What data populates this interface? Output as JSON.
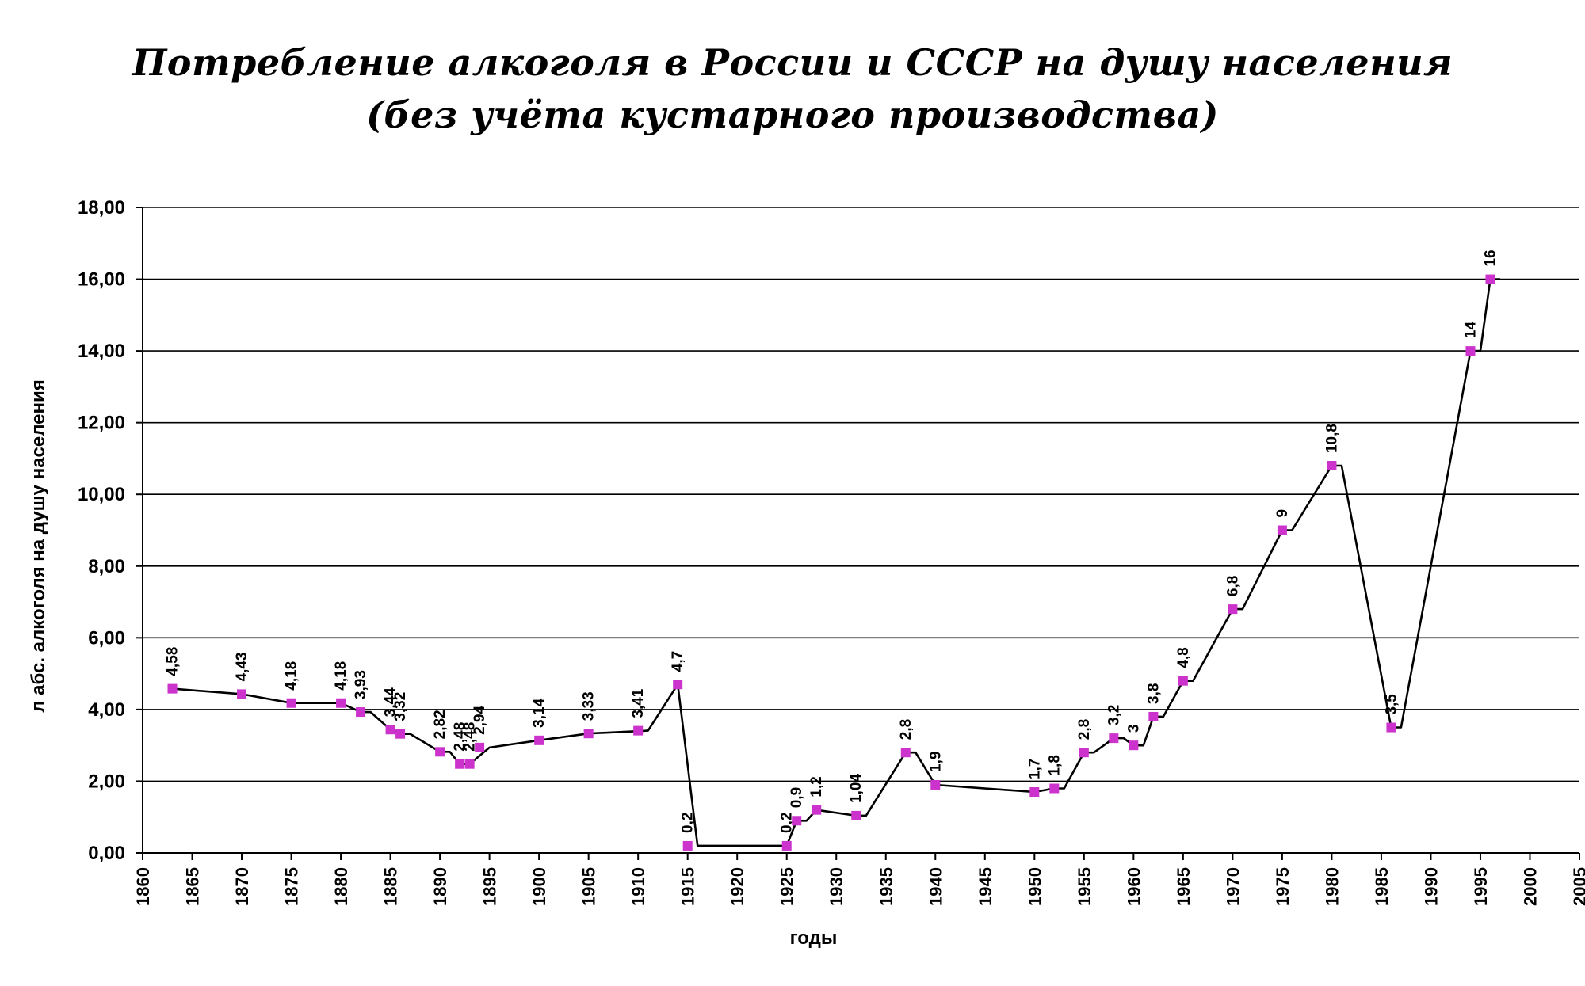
{
  "chart_data": {
    "type": "line",
    "title": "Потребление алкоголя в России и СССР на душу населения",
    "subtitle": "(без учёта кустарного производства)",
    "xlabel": "годы",
    "ylabel": "л абс. алкоголя на душу населения",
    "xlim": [
      1860,
      2005
    ],
    "ylim": [
      0,
      18
    ],
    "x_ticks": [
      "1860",
      "1865",
      "1870",
      "1875",
      "1880",
      "1885",
      "1890",
      "1895",
      "1900",
      "1905",
      "1910",
      "1915",
      "1920",
      "1925",
      "1930",
      "1935",
      "1940",
      "1945",
      "1950",
      "1955",
      "1960",
      "1965",
      "1970",
      "1975",
      "1980",
      "1985",
      "1990",
      "1995",
      "2000",
      "2005"
    ],
    "y_ticks": [
      "0,00",
      "2,00",
      "4,00",
      "6,00",
      "8,00",
      "10,00",
      "12,00",
      "14,00",
      "16,00",
      "18,00"
    ],
    "grid": true,
    "line_color": "#000000",
    "marker_color": "#cc33cc",
    "series": [
      {
        "points": [
          {
            "x": 1863,
            "y": 4.58,
            "label": "4,58"
          },
          {
            "x": 1870,
            "y": 4.43,
            "label": "4,43"
          },
          {
            "x": 1875,
            "y": 4.18,
            "label": "4,18"
          },
          {
            "x": 1880,
            "y": 4.18,
            "label": "4,18"
          },
          {
            "x": 1882,
            "y": 3.93,
            "label": "3,93"
          },
          {
            "x": 1885,
            "y": 3.44,
            "label": "3,44"
          },
          {
            "x": 1886,
            "y": 3.32,
            "label": "3,32"
          },
          {
            "x": 1890,
            "y": 2.82,
            "label": "2,82"
          },
          {
            "x": 1892,
            "y": 2.48,
            "label": "2,48"
          },
          {
            "x": 1893,
            "y": 2.48,
            "label": "2,48"
          },
          {
            "x": 1894,
            "y": 2.94,
            "label": "2,94"
          },
          {
            "x": 1900,
            "y": 3.14,
            "label": "3,14"
          },
          {
            "x": 1905,
            "y": 3.33,
            "label": "3,33"
          },
          {
            "x": 1910,
            "y": 3.41,
            "label": "3,41"
          },
          {
            "x": 1914,
            "y": 4.7,
            "label": "4,7"
          },
          {
            "x": 1915,
            "y": 0.2,
            "label": "0,2"
          },
          {
            "x": 1925,
            "y": 0.2,
            "label": "0,2"
          },
          {
            "x": 1926,
            "y": 0.9,
            "label": "0,9"
          },
          {
            "x": 1928,
            "y": 1.2,
            "label": "1,2"
          },
          {
            "x": 1932,
            "y": 1.04,
            "label": "1,04"
          },
          {
            "x": 1937,
            "y": 2.8,
            "label": "2,8"
          },
          {
            "x": 1940,
            "y": 1.9,
            "label": "1,9"
          },
          {
            "x": 1950,
            "y": 1.7,
            "label": "1,7"
          },
          {
            "x": 1952,
            "y": 1.8,
            "label": "1,8"
          },
          {
            "x": 1955,
            "y": 2.8,
            "label": "2,8"
          },
          {
            "x": 1958,
            "y": 3.2,
            "label": "3,2"
          },
          {
            "x": 1960,
            "y": 3.0,
            "label": "3"
          },
          {
            "x": 1962,
            "y": 3.8,
            "label": "3,8"
          },
          {
            "x": 1965,
            "y": 4.8,
            "label": "4,8"
          },
          {
            "x": 1970,
            "y": 6.8,
            "label": "6,8"
          },
          {
            "x": 1975,
            "y": 9.0,
            "label": "9"
          },
          {
            "x": 1980,
            "y": 10.8,
            "label": "10,8"
          },
          {
            "x": 1986,
            "y": 3.5,
            "label": "3,5"
          },
          {
            "x": 1994,
            "y": 14.0,
            "label": "14"
          },
          {
            "x": 1996,
            "y": 16.0,
            "label": "16"
          }
        ],
        "connector_path": [
          {
            "x": 1863,
            "y": 4.58
          },
          {
            "x": 1870,
            "y": 4.43
          },
          {
            "x": 1875,
            "y": 4.18
          },
          {
            "x": 1880,
            "y": 4.18
          },
          {
            "x": 1882,
            "y": 3.93
          },
          {
            "x": 1883,
            "y": 3.93
          },
          {
            "x": 1885,
            "y": 3.44
          },
          {
            "x": 1886,
            "y": 3.32
          },
          {
            "x": 1887,
            "y": 3.32
          },
          {
            "x": 1890,
            "y": 2.82
          },
          {
            "x": 1891,
            "y": 2.82
          },
          {
            "x": 1892,
            "y": 2.48
          },
          {
            "x": 1893,
            "y": 2.48
          },
          {
            "x": 1895,
            "y": 2.94
          },
          {
            "x": 1900,
            "y": 3.14
          },
          {
            "x": 1905,
            "y": 3.33
          },
          {
            "x": 1911,
            "y": 3.41
          },
          {
            "x": 1914,
            "y": 4.7
          },
          {
            "x": 1916,
            "y": 0.2
          },
          {
            "x": 1925,
            "y": 0.2
          },
          {
            "x": 1926,
            "y": 0.9
          },
          {
            "x": 1927,
            "y": 0.9
          },
          {
            "x": 1928,
            "y": 1.2
          },
          {
            "x": 1932,
            "y": 1.04
          },
          {
            "x": 1933,
            "y": 1.04
          },
          {
            "x": 1937,
            "y": 2.8
          },
          {
            "x": 1938,
            "y": 2.8
          },
          {
            "x": 1940,
            "y": 1.9
          },
          {
            "x": 1950,
            "y": 1.7
          },
          {
            "x": 1952,
            "y": 1.8
          },
          {
            "x": 1953,
            "y": 1.8
          },
          {
            "x": 1955,
            "y": 2.8
          },
          {
            "x": 1956,
            "y": 2.8
          },
          {
            "x": 1958,
            "y": 3.2
          },
          {
            "x": 1959,
            "y": 3.2
          },
          {
            "x": 1960,
            "y": 3.0
          },
          {
            "x": 1961,
            "y": 3.0
          },
          {
            "x": 1962,
            "y": 3.8
          },
          {
            "x": 1963,
            "y": 3.8
          },
          {
            "x": 1965,
            "y": 4.8
          },
          {
            "x": 1966,
            "y": 4.8
          },
          {
            "x": 1970,
            "y": 6.8
          },
          {
            "x": 1971,
            "y": 6.8
          },
          {
            "x": 1975,
            "y": 9.0
          },
          {
            "x": 1976,
            "y": 9.0
          },
          {
            "x": 1980,
            "y": 10.8
          },
          {
            "x": 1981,
            "y": 10.8
          },
          {
            "x": 1986,
            "y": 3.5
          },
          {
            "x": 1987,
            "y": 3.5
          },
          {
            "x": 1994,
            "y": 14.0
          },
          {
            "x": 1995,
            "y": 14.0
          },
          {
            "x": 1996,
            "y": 16.0
          },
          {
            "x": 1997,
            "y": 16.0
          }
        ]
      }
    ]
  }
}
